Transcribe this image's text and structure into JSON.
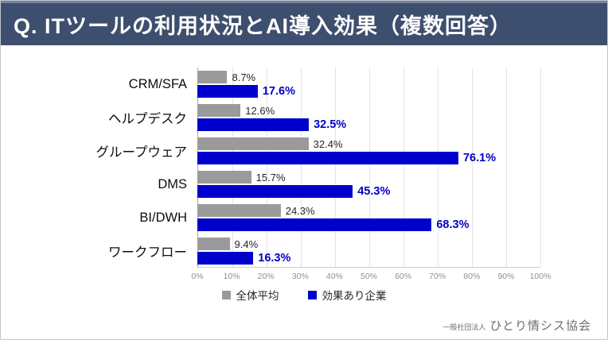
{
  "title": "Q. ITツールの利用状況とAI導入効果（複数回答）",
  "chart_data": {
    "type": "bar",
    "orientation": "horizontal",
    "title": "Q. ITツールの利用状況とAI導入効果（複数回答）",
    "categories": [
      "CRM/SFA",
      "ヘルプデスク",
      "グループウェア",
      "DMS",
      "BI/DWH",
      "ワークフロー"
    ],
    "series": [
      {
        "name": "全体平均",
        "color": "#9a9a9a",
        "label_color": "#262626",
        "values": [
          8.7,
          12.6,
          32.4,
          15.7,
          24.3,
          9.4
        ]
      },
      {
        "name": "効果あり企業",
        "color": "#0000cc",
        "label_color": "#0000c8",
        "values": [
          17.6,
          32.5,
          76.1,
          45.3,
          68.3,
          16.3
        ]
      }
    ],
    "value_suffix": "%",
    "xlim": [
      0,
      100
    ],
    "x_ticks": [
      "0%",
      "10%",
      "20%",
      "30%",
      "40%",
      "50%",
      "60%",
      "70%",
      "80%",
      "90%",
      "100%"
    ],
    "grid": true,
    "legend_position": "bottom"
  },
  "colors": {
    "header_background": "#3e4e6e",
    "header_top_edge": "#76839d",
    "bar_average": "#9a9a9a",
    "bar_effective": "#0000cc",
    "gridline": "#e4e4e4",
    "axis_tick_text": "#909090"
  },
  "footer": {
    "org_type": "一般社団法人",
    "org_name": "ひとり情シス協会"
  }
}
